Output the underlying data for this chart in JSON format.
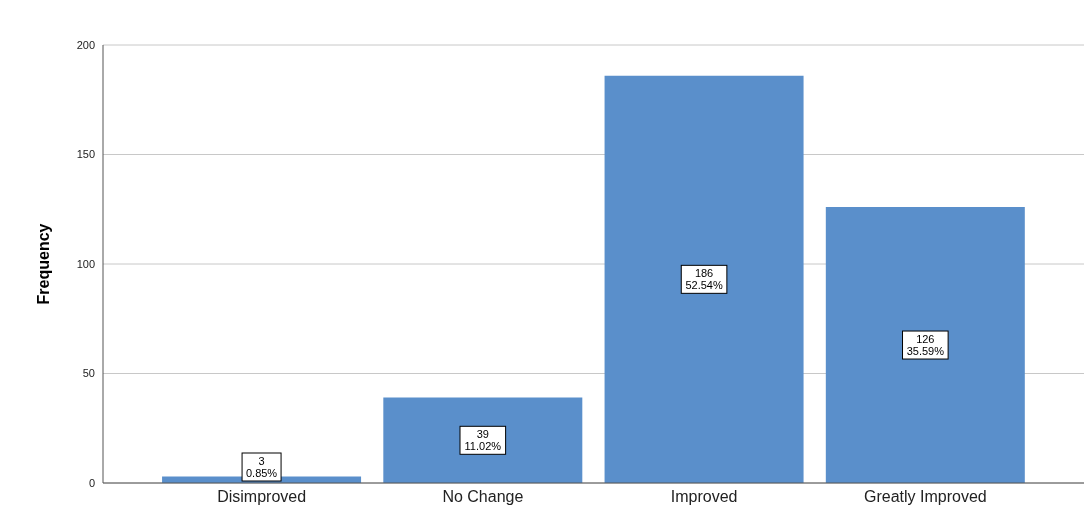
{
  "chart_data": {
    "type": "bar",
    "ylabel": "Frequency",
    "categories": [
      "Disimproved",
      "No Change",
      "Improved",
      "Greatly Improved"
    ],
    "values": [
      3,
      39,
      186,
      126
    ],
    "color": "#5a8fcb",
    "value_labels": [
      "3\n0.85%",
      "39\n11.02%",
      "186\n52.54%",
      "126\n35.59%"
    ],
    "ylim": [
      0,
      200
    ],
    "yticks": [
      0,
      50,
      100,
      150,
      200
    ],
    "grid": "y",
    "legend": false
  }
}
